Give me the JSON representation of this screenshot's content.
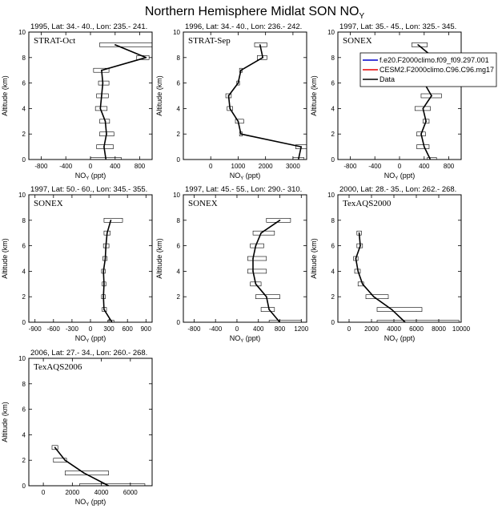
{
  "figure": {
    "title": "Northern Hemisphere Midlat SON NO",
    "title_sub": "Y",
    "background": "#ffffff",
    "colors": {
      "model1": "#0000cc",
      "model2": "#e60000",
      "data": "#000000"
    }
  },
  "legend": {
    "placement": "top-right",
    "entries": [
      {
        "label": "f.e20.F2000climo.f09_f09.297.001",
        "color": "#0000cc"
      },
      {
        "label": "CESM2.F2000climo.C96.C96.mg17",
        "color": "#e60000"
      },
      {
        "label": "Data",
        "color": "#000000"
      }
    ]
  },
  "chart_data": [
    {
      "type": "line",
      "header": "1995, Lat: 34.- 40., Lon: 235.- 241.",
      "campaign": "STRAT-Oct",
      "xlabel": "NO",
      "xlabel_sub": "Y",
      "xlabel_unit": "(ppt)",
      "ylabel": "Altitude (km)",
      "xlim": [
        -1000,
        1000
      ],
      "ylim": [
        0,
        10
      ],
      "xticks": [
        -800,
        -400,
        0,
        400,
        800
      ],
      "yticks": [
        0,
        2,
        4,
        6,
        8,
        10
      ],
      "series": [
        {
          "name": "Data",
          "altitude": [
            0,
            1,
            2,
            3,
            4,
            5,
            6,
            7,
            8,
            9
          ],
          "values": [
            250,
            220,
            260,
            240,
            160,
            180,
            200,
            180,
            900,
            400
          ],
          "range_min": [
            0,
            100,
            150,
            150,
            80,
            100,
            130,
            50,
            750,
            150
          ],
          "range_max": [
            500,
            370,
            380,
            310,
            270,
            290,
            300,
            300,
            950,
            1000
          ]
        }
      ]
    },
    {
      "type": "line",
      "header": "1996, Lat: 34.- 40., Lon: 236.- 242.",
      "campaign": "STRAT-Sep",
      "xlabel": "NO",
      "xlabel_sub": "Y",
      "xlabel_unit": "(ppt)",
      "ylabel": "Altitude (km)",
      "xlim": [
        -1000,
        3500
      ],
      "ylim": [
        0,
        10
      ],
      "xticks": [
        0,
        1000,
        2000,
        3000
      ],
      "yticks": [
        0,
        2,
        4,
        6,
        8,
        10
      ],
      "series": [
        {
          "name": "Data",
          "altitude": [
            0,
            1,
            2,
            3,
            4,
            5,
            6,
            7,
            8,
            9
          ],
          "values": [
            3200,
            3300,
            1100,
            1000,
            700,
            650,
            1000,
            1100,
            1900,
            1800
          ],
          "range_min": [
            3000,
            3100,
            1050,
            900,
            600,
            550,
            950,
            1050,
            1700,
            1600
          ],
          "range_max": [
            3400,
            3500,
            1150,
            1200,
            800,
            750,
            1050,
            1150,
            2050,
            2050
          ]
        }
      ]
    },
    {
      "type": "line",
      "header": "1997, Lat: 35.- 45., Lon: 325.- 345.",
      "campaign": "SONEX",
      "xlabel": "NO",
      "xlabel_sub": "Y",
      "xlabel_unit": "(ppt)",
      "ylabel": "Altitude (km)",
      "xlim": [
        -1000,
        1000
      ],
      "ylim": [
        0,
        10
      ],
      "xticks": [
        -800,
        -400,
        0,
        400,
        800
      ],
      "yticks": [
        0,
        2,
        4,
        6,
        8,
        10
      ],
      "series": [
        {
          "name": "Data",
          "altitude": [
            0,
            1,
            2,
            3,
            4,
            5,
            6,
            7,
            8,
            9
          ],
          "values": [
            500,
            400,
            350,
            430,
            380,
            520,
            400,
            250,
            550,
            300
          ],
          "range_min": [
            450,
            280,
            280,
            380,
            250,
            350,
            320,
            200,
            400,
            200
          ],
          "range_max": [
            600,
            480,
            420,
            480,
            500,
            680,
            460,
            320,
            650,
            450
          ]
        }
      ]
    },
    {
      "type": "line",
      "header": "1997, Lat: 50.- 60., Lon: 345.- 355.",
      "campaign": "SONEX",
      "xlabel": "NO",
      "xlabel_sub": "Y",
      "xlabel_unit": "(ppt)",
      "ylabel": "Altitude (km)",
      "xlim": [
        -1000,
        1000
      ],
      "ylim": [
        0,
        10
      ],
      "xticks": [
        -900,
        -600,
        -300,
        0,
        300,
        600,
        900
      ],
      "yticks": [
        0,
        2,
        4,
        6,
        8,
        10
      ],
      "series": [
        {
          "name": "Data",
          "altitude": [
            0,
            1,
            2,
            3,
            4,
            5,
            6,
            7,
            8
          ],
          "values": [
            350,
            220,
            210,
            220,
            210,
            240,
            250,
            270,
            330
          ],
          "range_min": [
            280,
            190,
            180,
            190,
            180,
            200,
            210,
            220,
            220
          ],
          "range_max": [
            380,
            260,
            240,
            250,
            240,
            270,
            300,
            320,
            520
          ]
        }
      ]
    },
    {
      "type": "line",
      "header": "1997, Lat: 45.- 55., Lon: 290.- 310.",
      "campaign": "SONEX",
      "xlabel": "NO",
      "xlabel_sub": "Y",
      "xlabel_unit": "(ppt)",
      "ylabel": "Altitude (km)",
      "xlim": [
        -1000,
        1300
      ],
      "ylim": [
        0,
        10
      ],
      "xticks": [
        -800,
        -400,
        0,
        400,
        800,
        1200
      ],
      "yticks": [
        0,
        2,
        4,
        6,
        8,
        10
      ],
      "series": [
        {
          "name": "Data",
          "altitude": [
            0,
            1,
            2,
            3,
            4,
            5,
            6,
            7,
            8
          ],
          "values": [
            800,
            600,
            550,
            350,
            300,
            300,
            350,
            450,
            800
          ],
          "range_min": [
            600,
            450,
            350,
            250,
            200,
            200,
            250,
            300,
            550
          ],
          "range_max": [
            1200,
            700,
            800,
            450,
            550,
            550,
            500,
            700,
            1000
          ]
        }
      ]
    },
    {
      "type": "line",
      "header": "2000, Lat: 28.- 35., Lon: 262.- 268.",
      "campaign": "TexAQS2000",
      "xlabel": "NO",
      "xlabel_sub": "Y",
      "xlabel_unit": "(ppt)",
      "ylabel": "Altitude (km)",
      "xlim": [
        -1000,
        10000
      ],
      "ylim": [
        0,
        10
      ],
      "xticks": [
        0,
        2000,
        4000,
        6000,
        8000,
        10000
      ],
      "yticks": [
        0,
        2,
        4,
        6,
        8,
        10
      ],
      "series": [
        {
          "name": "Data",
          "altitude": [
            0,
            1,
            2,
            3,
            4,
            5,
            6,
            7
          ],
          "values": [
            5000,
            3800,
            2200,
            1200,
            800,
            600,
            1000,
            900
          ],
          "range_min": [
            2500,
            2500,
            1500,
            800,
            500,
            400,
            700,
            700
          ],
          "range_max": [
            9800,
            6500,
            3500,
            1300,
            1000,
            800,
            1200,
            1100
          ]
        }
      ]
    },
    {
      "type": "line",
      "header": "2006, Lat: 27.- 34., Lon: 260.- 268.",
      "campaign": "TexAQS2006",
      "xlabel": "NO",
      "xlabel_sub": "Y",
      "xlabel_unit": "(ppt)",
      "ylabel": "Altitude (km)",
      "xlim": [
        -1000,
        7500
      ],
      "ylim": [
        0,
        10
      ],
      "xticks": [
        0,
        2000,
        4000,
        6000
      ],
      "yticks": [
        0,
        2,
        4,
        6,
        8,
        10
      ],
      "series": [
        {
          "name": "Data",
          "altitude": [
            0,
            1,
            2,
            3
          ],
          "values": [
            4500,
            2800,
            1500,
            800
          ],
          "range_min": [
            2500,
            1500,
            700,
            600
          ],
          "range_max": [
            7000,
            4500,
            1600,
            1000
          ]
        }
      ]
    }
  ]
}
